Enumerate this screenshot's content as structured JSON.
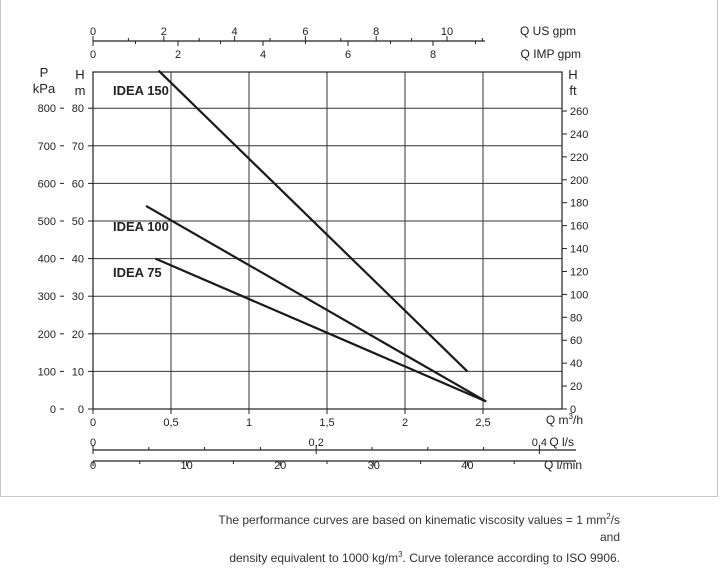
{
  "chart_data": {
    "type": "line",
    "title": "",
    "axes": {
      "x_primary": {
        "label_main": "Q m",
        "label_sup": "3",
        "label_tail": "/h",
        "ticks": [
          "0",
          "0,5",
          "1",
          "1,5",
          "2",
          "2,5"
        ],
        "range": [
          0,
          2.5
        ]
      },
      "x_ls": {
        "label": "Q l/s",
        "ticks": [
          "0",
          "0,2",
          "0,4"
        ],
        "values": [
          0,
          0.2,
          0.4
        ]
      },
      "x_lmin": {
        "label": "Q l/min",
        "ticks": [
          "0",
          "10",
          "20",
          "30",
          "40"
        ],
        "values": [
          0,
          10,
          20,
          30,
          40
        ]
      },
      "x_us_gpm": {
        "label": "Q US gpm",
        "ticks": [
          "0",
          "2",
          "4",
          "6",
          "8",
          "10"
        ],
        "values": [
          0,
          2,
          4,
          6,
          8,
          10
        ]
      },
      "x_imp_gpm": {
        "label": "Q IMP gpm",
        "ticks": [
          "0",
          "2",
          "4",
          "6",
          "8"
        ],
        "values": [
          0,
          2,
          4,
          6,
          8
        ]
      },
      "y_m": {
        "label_top": "H",
        "label_unit": "m",
        "ticks": [
          "0",
          "10",
          "20",
          "30",
          "40",
          "50",
          "60",
          "70",
          "80"
        ],
        "range": [
          0,
          90
        ]
      },
      "y_kpa": {
        "label_top": "P",
        "label_unit": "kPa",
        "ticks": [
          "0",
          "100",
          "200",
          "300",
          "400",
          "500",
          "600",
          "700",
          "800"
        ]
      },
      "y_ft": {
        "label_top": "H",
        "label_unit": "ft",
        "ticks": [
          "0",
          "20",
          "40",
          "60",
          "80",
          "100",
          "120",
          "140",
          "160",
          "180",
          "200",
          "220",
          "240",
          "260"
        ]
      }
    },
    "series": [
      {
        "name": "IDEA 150",
        "x": [
          0.42,
          2.4
        ],
        "y": [
          90,
          10
        ]
      },
      {
        "name": "IDEA 100",
        "x": [
          0.34,
          2.52
        ],
        "y": [
          54,
          2
        ]
      },
      {
        "name": "IDEA 75",
        "x": [
          0.4,
          2.52
        ],
        "y": [
          40,
          2
        ]
      }
    ],
    "grid": true,
    "legend": "inline-labels"
  },
  "footnote": {
    "line1_a": "The performance curves are based on kinematic viscosity values = 1 mm",
    "line1_sup": "2",
    "line1_b": "/s and",
    "line2_a": "density equivalent to 1000 kg/m",
    "line2_sup": "3",
    "line2_b": ". Curve tolerance according to ISO 9906."
  }
}
